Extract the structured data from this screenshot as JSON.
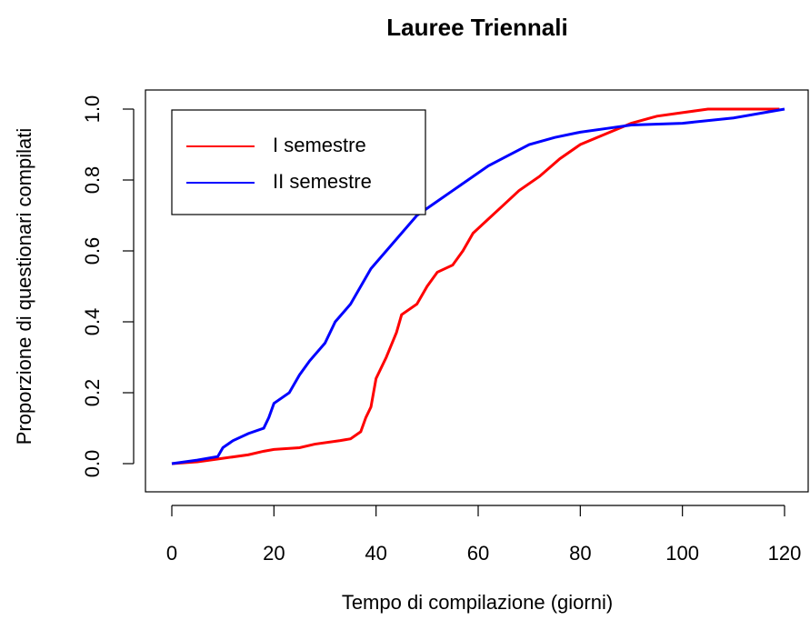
{
  "chart_data": {
    "type": "line",
    "title": "Lauree Triennali",
    "xlabel": "Tempo di compilazione (giorni)",
    "ylabel": "Proporzione di questionari compilati",
    "xlim": [
      0,
      120
    ],
    "ylim": [
      0,
      1
    ],
    "xticks": [
      0,
      20,
      40,
      60,
      80,
      100,
      120
    ],
    "yticks": [
      {
        "value": 0,
        "label": "0.0"
      },
      {
        "value": 0.2,
        "label": "0.2"
      },
      {
        "value": 0.4,
        "label": "0.4"
      },
      {
        "value": 0.6,
        "label": "0.6"
      },
      {
        "value": 0.8,
        "label": "0.8"
      },
      {
        "value": 1,
        "label": "1.0"
      }
    ],
    "legend": "top-left",
    "series": [
      {
        "name": "I semestre",
        "color": "#ff0000",
        "x": [
          0,
          5,
          10,
          15,
          18,
          20,
          25,
          28,
          33,
          35,
          37,
          38,
          39,
          40,
          42,
          44,
          45,
          48,
          50,
          52,
          55,
          57,
          59,
          62,
          65,
          68,
          72,
          76,
          80,
          85,
          90,
          95,
          100,
          105,
          119
        ],
        "values": [
          0,
          0.005,
          0.015,
          0.025,
          0.035,
          0.04,
          0.045,
          0.055,
          0.065,
          0.07,
          0.09,
          0.13,
          0.16,
          0.24,
          0.3,
          0.37,
          0.42,
          0.45,
          0.5,
          0.54,
          0.56,
          0.6,
          0.65,
          0.69,
          0.73,
          0.77,
          0.81,
          0.86,
          0.9,
          0.93,
          0.96,
          0.98,
          0.99,
          1.0,
          1.0
        ]
      },
      {
        "name": "II semestre",
        "color": "#0000ff",
        "x": [
          0,
          5,
          9,
          10,
          12,
          15,
          18,
          19,
          20,
          23,
          25,
          27,
          30,
          32,
          35,
          37,
          39,
          42,
          45,
          48,
          52,
          55,
          58,
          62,
          66,
          70,
          75,
          80,
          85,
          90,
          100,
          110,
          120
        ],
        "values": [
          0,
          0.01,
          0.02,
          0.045,
          0.065,
          0.085,
          0.1,
          0.13,
          0.17,
          0.2,
          0.25,
          0.29,
          0.34,
          0.4,
          0.45,
          0.5,
          0.55,
          0.6,
          0.65,
          0.7,
          0.74,
          0.77,
          0.8,
          0.84,
          0.87,
          0.9,
          0.92,
          0.935,
          0.945,
          0.955,
          0.96,
          0.975,
          1.0
        ]
      }
    ]
  }
}
